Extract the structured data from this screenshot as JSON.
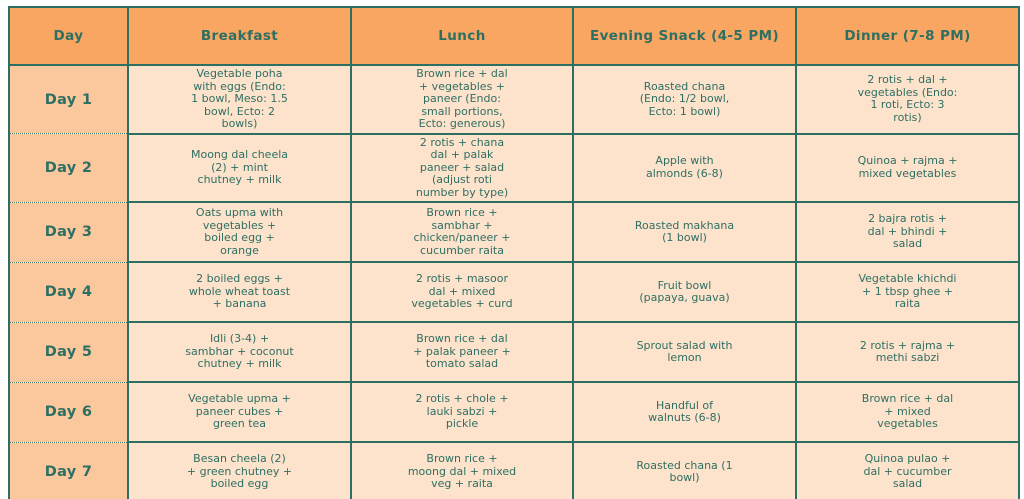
{
  "table": {
    "headers": [
      "Day",
      "Breakfast",
      "Lunch",
      "Evening Snack (4-5 PM)",
      "Dinner (7-8 PM)"
    ],
    "rows": [
      {
        "day": "Day 1",
        "breakfast": "Vegetable poha\nwith eggs (Endo:\n1 bowl, Meso: 1.5\nbowl, Ecto: 2\nbowls)",
        "lunch": "Brown rice + dal\n+ vegetables +\npaneer (Endo:\nsmall portions,\nEcto: generous)",
        "snack": "Roasted chana\n(Endo: 1/2 bowl,\nEcto: 1 bowl)",
        "dinner": "2 rotis + dal +\nvegetables (Endo:\n1 roti, Ecto: 3\nrotis)"
      },
      {
        "day": "Day 2",
        "breakfast": "Moong dal cheela\n(2) + mint\nchutney + milk",
        "lunch": "2 rotis + chana\ndal + palak\npaneer + salad\n(adjust roti\nnumber by type)",
        "snack": "Apple with\nalmonds (6-8)",
        "dinner": "Quinoa + rajma +\nmixed vegetables"
      },
      {
        "day": "Day 3",
        "breakfast": "Oats upma with\nvegetables +\nboiled egg +\norange",
        "lunch": "Brown rice +\nsambhar +\nchicken/paneer +\ncucumber raita",
        "snack": "Roasted makhana\n(1 bowl)",
        "dinner": "2 bajra rotis +\ndal + bhindi +\nsalad"
      },
      {
        "day": "Day 4",
        "breakfast": "2 boiled eggs +\nwhole wheat toast\n+ banana",
        "lunch": "2 rotis + masoor\ndal + mixed\nvegetables + curd",
        "snack": "Fruit bowl\n(papaya, guava)",
        "dinner": "Vegetable khichdi\n+ 1 tbsp ghee +\nraita"
      },
      {
        "day": "Day 5",
        "breakfast": "Idli (3-4) +\nsambhar + coconut\nchutney + milk",
        "lunch": "Brown rice + dal\n+ palak paneer +\ntomato salad",
        "snack": "Sprout salad with\nlemon",
        "dinner": "2 rotis + rajma +\nmethi sabzi"
      },
      {
        "day": "Day 6",
        "breakfast": "Vegetable upma +\npaneer cubes +\ngreen tea",
        "lunch": "2 rotis + chole +\nlauki sabzi +\npickle",
        "snack": "Handful of\nwalnuts (6-8)",
        "dinner": "Brown rice + dal\n+ mixed\nvegetables"
      },
      {
        "day": "Day 7",
        "breakfast": "Besan cheela (2)\n+ green chutney +\nboiled egg",
        "lunch": "Brown rice +\nmoong dal + mixed\nveg + raita",
        "snack": "Roasted chana (1\nbowl)",
        "dinner": "Quinoa pulao +\ndal + cucumber\nsalad"
      }
    ],
    "colors": {
      "header_bg": "#f9a662",
      "day_column_bg": "#fbc79c",
      "cell_bg": "#fde3cc",
      "text_and_border": "#2e6f63",
      "page_bg": "#ffffff"
    }
  }
}
